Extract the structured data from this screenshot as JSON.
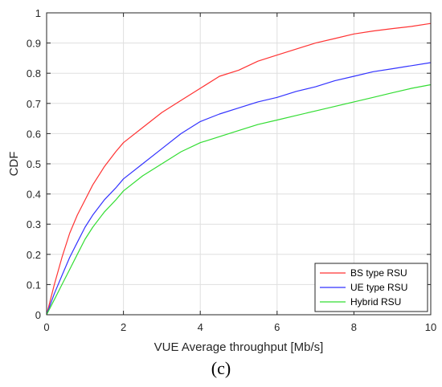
{
  "chart_data": {
    "type": "line",
    "xlabel": "VUE Average throughput [Mb/s]",
    "ylabel": "CDF",
    "xlim": [
      0,
      10
    ],
    "ylim": [
      0,
      1
    ],
    "xticks": [
      "0",
      "2",
      "4",
      "6",
      "8",
      "10"
    ],
    "yticks": [
      "0",
      "0.1",
      "0.2",
      "0.3",
      "0.4",
      "0.5",
      "0.6",
      "0.7",
      "0.8",
      "0.9",
      "1"
    ],
    "grid": true,
    "legend_position": "bottom-right",
    "series": [
      {
        "name": "BS type RSU",
        "color": "#ff3333",
        "x": [
          0,
          0.2,
          0.4,
          0.6,
          0.8,
          1.0,
          1.2,
          1.5,
          1.8,
          2.0,
          2.5,
          3.0,
          3.5,
          4.0,
          4.5,
          5.0,
          5.5,
          6.0,
          6.5,
          7.0,
          7.5,
          8.0,
          8.5,
          9.0,
          9.5,
          10.0
        ],
        "y": [
          0,
          0.1,
          0.19,
          0.27,
          0.33,
          0.38,
          0.43,
          0.49,
          0.54,
          0.57,
          0.62,
          0.67,
          0.71,
          0.75,
          0.79,
          0.81,
          0.84,
          0.86,
          0.88,
          0.9,
          0.915,
          0.93,
          0.94,
          0.948,
          0.955,
          0.965
        ]
      },
      {
        "name": "UE type RSU",
        "color": "#3333ff",
        "x": [
          0,
          0.2,
          0.4,
          0.6,
          0.8,
          1.0,
          1.2,
          1.5,
          1.8,
          2.0,
          2.5,
          3.0,
          3.5,
          4.0,
          4.5,
          5.0,
          5.5,
          6.0,
          6.5,
          7.0,
          7.5,
          8.0,
          8.5,
          9.0,
          9.5,
          10.0
        ],
        "y": [
          0,
          0.07,
          0.13,
          0.19,
          0.24,
          0.29,
          0.33,
          0.38,
          0.42,
          0.45,
          0.5,
          0.55,
          0.6,
          0.64,
          0.665,
          0.685,
          0.705,
          0.72,
          0.74,
          0.755,
          0.775,
          0.79,
          0.805,
          0.815,
          0.825,
          0.835
        ]
      },
      {
        "name": "Hybrid RSU",
        "color": "#33dd33",
        "x": [
          0,
          0.2,
          0.4,
          0.6,
          0.8,
          1.0,
          1.2,
          1.5,
          1.8,
          2.0,
          2.5,
          3.0,
          3.5,
          4.0,
          4.5,
          5.0,
          5.5,
          6.0,
          6.5,
          7.0,
          7.5,
          8.0,
          8.5,
          9.0,
          9.5,
          10.0
        ],
        "y": [
          0,
          0.05,
          0.1,
          0.15,
          0.2,
          0.25,
          0.29,
          0.34,
          0.38,
          0.41,
          0.46,
          0.5,
          0.54,
          0.57,
          0.59,
          0.61,
          0.63,
          0.645,
          0.66,
          0.675,
          0.69,
          0.705,
          0.72,
          0.735,
          0.75,
          0.762
        ]
      }
    ]
  },
  "panel_label": "(c)"
}
